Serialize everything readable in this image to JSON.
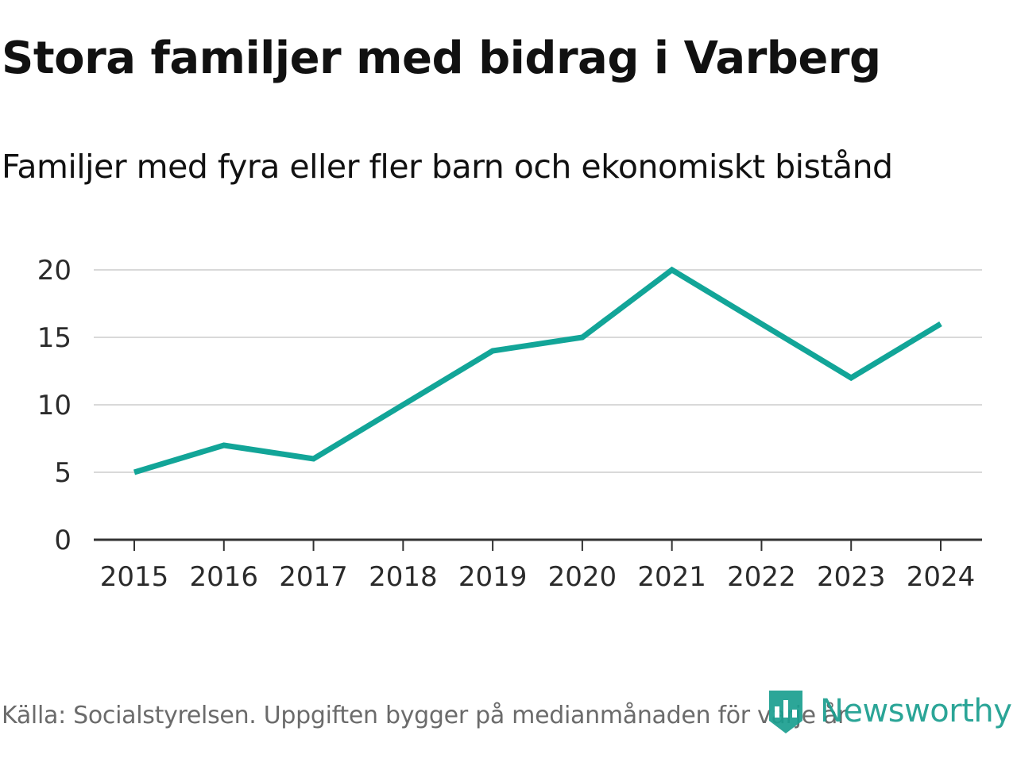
{
  "chart_data": {
    "type": "line",
    "title": "Stora familjer med bidrag i Varberg",
    "subtitle": "Familjer med fyra eller fler barn och ekonomiskt bistånd",
    "xlabel": "",
    "ylabel": "",
    "x": [
      "2015",
      "2016",
      "2017",
      "2018",
      "2019",
      "2020",
      "2021",
      "2022",
      "2023",
      "2024"
    ],
    "series": [
      {
        "name": "Familjer med fyra eller fler barn och ekonomiskt bistånd",
        "values": [
          5,
          7,
          6,
          10,
          14,
          15,
          20,
          16,
          12,
          16
        ],
        "color": "#12a598"
      }
    ],
    "yticks": [
      "0",
      "5",
      "10",
      "15",
      "20"
    ],
    "ylim": [
      0,
      20
    ],
    "grid": true,
    "gridColor": "#d9d9d9",
    "axisColor": "#333333"
  },
  "footer": {
    "source": "Källa: Socialstyrelsen. Uppgiften bygger på medianmånaden för varje år",
    "brand": "Newsworthy",
    "brandColor": "#1a9e8f"
  }
}
